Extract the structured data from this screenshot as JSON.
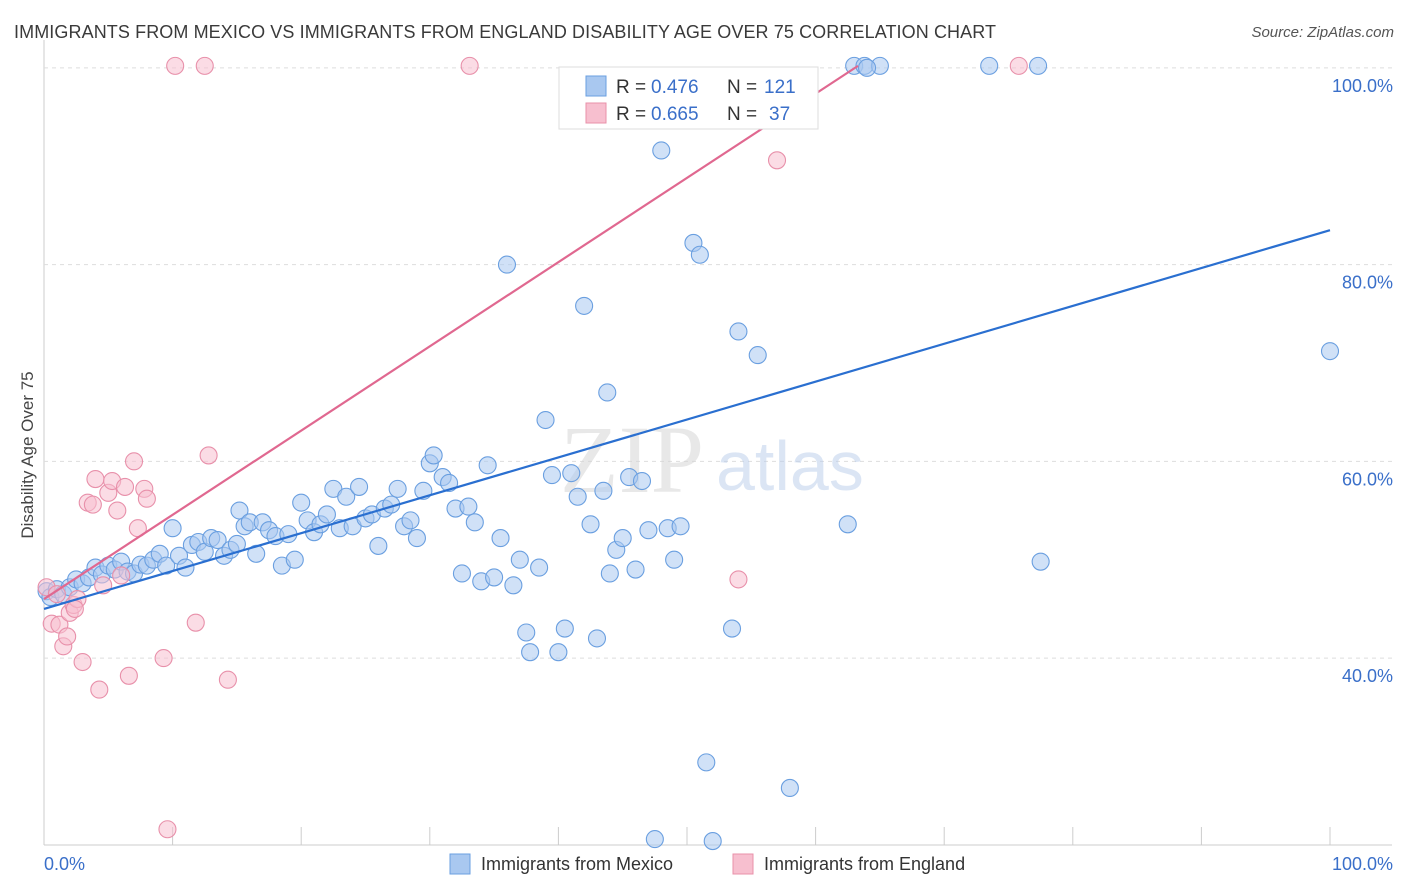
{
  "title": "IMMIGRANTS FROM MEXICO VS IMMIGRANTS FROM ENGLAND DISABILITY AGE OVER 75 CORRELATION CHART",
  "source": "Source: ZipAtlas.com",
  "watermark": "ZIPatlas",
  "colors": {
    "mexico_fill": "#a9c8f0",
    "mexico_stroke": "#6a9fe0",
    "mexico_line": "#2a6fd0",
    "england_fill": "#f7bfcf",
    "england_stroke": "#e890aa",
    "england_line": "#e06890",
    "axis_text": "#3a6fc9",
    "grid": "#dddddd"
  },
  "legend": {
    "rows": [
      {
        "r_label": "R =",
        "r_value": "0.476",
        "n_label": "N =",
        "n_value": "121"
      },
      {
        "r_label": "R =",
        "r_value": "0.665",
        "n_label": "N =",
        "n_value": "37"
      }
    ]
  },
  "chart_data": {
    "type": "scatter",
    "title": "IMMIGRANTS FROM MEXICO VS IMMIGRANTS FROM ENGLAND DISABILITY AGE OVER 75 CORRELATION CHART",
    "xlabel": "",
    "ylabel": "Disability Age Over 75",
    "xlim": [
      0,
      100
    ],
    "ylim": [
      21,
      101
    ],
    "x_tick_labels": [
      "0.0%",
      "100.0%"
    ],
    "y_ticks": [
      40,
      60,
      80,
      100
    ],
    "y_tick_labels": [
      "40.0%",
      "60.0%",
      "80.0%",
      "100.0%"
    ],
    "grid": true,
    "legend_position": "top-center",
    "series": [
      {
        "name": "Immigrants from Mexico",
        "r": 0.476,
        "n": 121,
        "trend": [
          [
            0,
            45.0
          ],
          [
            100,
            83.5
          ]
        ],
        "points": [
          [
            0.2,
            46.8
          ],
          [
            0.5,
            46.2
          ],
          [
            1.0,
            47.0
          ],
          [
            1.5,
            46.5
          ],
          [
            2.0,
            47.2
          ],
          [
            2.5,
            48.0
          ],
          [
            3.0,
            47.6
          ],
          [
            3.5,
            48.2
          ],
          [
            4.0,
            49.2
          ],
          [
            4.5,
            48.5
          ],
          [
            5.0,
            49.4
          ],
          [
            5.5,
            49.0
          ],
          [
            6.0,
            49.8
          ],
          [
            6.5,
            48.8
          ],
          [
            7.0,
            48.6
          ],
          [
            7.5,
            49.5
          ],
          [
            8.0,
            49.4
          ],
          [
            8.5,
            50.0
          ],
          [
            9.0,
            50.6
          ],
          [
            9.5,
            49.4
          ],
          [
            10.0,
            53.2
          ],
          [
            10.5,
            50.4
          ],
          [
            11.0,
            49.2
          ],
          [
            11.5,
            51.5
          ],
          [
            12.0,
            51.8
          ],
          [
            12.5,
            50.8
          ],
          [
            13.0,
            52.2
          ],
          [
            13.5,
            52.0
          ],
          [
            14.0,
            50.4
          ],
          [
            14.5,
            51.0
          ],
          [
            15.0,
            51.6
          ],
          [
            15.2,
            55.0
          ],
          [
            15.6,
            53.4
          ],
          [
            16.0,
            53.8
          ],
          [
            16.5,
            50.6
          ],
          [
            17.0,
            53.8
          ],
          [
            17.5,
            53.0
          ],
          [
            18.0,
            52.4
          ],
          [
            18.5,
            49.4
          ],
          [
            19.0,
            52.6
          ],
          [
            19.5,
            50.0
          ],
          [
            20.0,
            55.8
          ],
          [
            20.5,
            54.0
          ],
          [
            21.0,
            52.8
          ],
          [
            21.5,
            53.6
          ],
          [
            22.0,
            54.6
          ],
          [
            22.5,
            57.2
          ],
          [
            23.0,
            53.2
          ],
          [
            23.5,
            56.4
          ],
          [
            24.0,
            53.4
          ],
          [
            24.5,
            57.4
          ],
          [
            25.0,
            54.2
          ],
          [
            25.5,
            54.6
          ],
          [
            26.0,
            51.4
          ],
          [
            26.5,
            55.2
          ],
          [
            27.0,
            55.6
          ],
          [
            27.5,
            57.2
          ],
          [
            28.0,
            53.4
          ],
          [
            28.5,
            54.0
          ],
          [
            29.0,
            52.2
          ],
          [
            29.5,
            57.0
          ],
          [
            30.0,
            59.8
          ],
          [
            30.3,
            60.6
          ],
          [
            31.0,
            58.4
          ],
          [
            31.5,
            57.8
          ],
          [
            32.0,
            55.2
          ],
          [
            32.5,
            48.6
          ],
          [
            33.0,
            55.4
          ],
          [
            33.5,
            53.8
          ],
          [
            34.0,
            47.8
          ],
          [
            34.5,
            59.6
          ],
          [
            35.0,
            48.2
          ],
          [
            35.5,
            52.2
          ],
          [
            36.0,
            80.0
          ],
          [
            36.5,
            47.4
          ],
          [
            37.0,
            50.0
          ],
          [
            37.5,
            42.6
          ],
          [
            37.8,
            40.6
          ],
          [
            38.5,
            49.2
          ],
          [
            39.0,
            64.2
          ],
          [
            39.5,
            58.6
          ],
          [
            40.0,
            40.6
          ],
          [
            40.5,
            43.0
          ],
          [
            41.0,
            58.8
          ],
          [
            41.5,
            56.4
          ],
          [
            42.0,
            75.8
          ],
          [
            42.5,
            53.6
          ],
          [
            43.0,
            42.0
          ],
          [
            43.5,
            57.0
          ],
          [
            43.8,
            67.0
          ],
          [
            44.0,
            48.6
          ],
          [
            44.5,
            51.0
          ],
          [
            45.0,
            52.2
          ],
          [
            45.5,
            58.4
          ],
          [
            46.0,
            49.0
          ],
          [
            46.5,
            58.0
          ],
          [
            47.0,
            53.0
          ],
          [
            47.5,
            21.6
          ],
          [
            48.0,
            91.6
          ],
          [
            48.5,
            53.2
          ],
          [
            49.0,
            50.0
          ],
          [
            49.5,
            53.4
          ],
          [
            50.5,
            82.2
          ],
          [
            51.0,
            81.0
          ],
          [
            51.5,
            29.4
          ],
          [
            52.0,
            21.4
          ],
          [
            53.0,
            95.8
          ],
          [
            53.5,
            43.0
          ],
          [
            54.0,
            73.2
          ],
          [
            55.5,
            70.8
          ],
          [
            56.0,
            96.8
          ],
          [
            58.0,
            26.8
          ],
          [
            62.5,
            53.6
          ],
          [
            63.0,
            100.2
          ],
          [
            63.8,
            100.2
          ],
          [
            65.0,
            100.2
          ],
          [
            73.5,
            100.2
          ],
          [
            77.3,
            100.2
          ],
          [
            77.5,
            49.8
          ],
          [
            100.0,
            71.2
          ],
          [
            64.0,
            100.0
          ]
        ]
      },
      {
        "name": "Immigrants from England",
        "r": 0.665,
        "n": 37,
        "trend": [
          [
            0,
            46.0
          ],
          [
            63.3,
            100.2
          ]
        ],
        "points": [
          [
            0.2,
            47.2
          ],
          [
            0.6,
            43.5
          ],
          [
            1.0,
            46.5
          ],
          [
            1.2,
            43.4
          ],
          [
            1.5,
            41.2
          ],
          [
            1.8,
            42.2
          ],
          [
            2.0,
            44.6
          ],
          [
            2.3,
            45.4
          ],
          [
            2.6,
            46.0
          ],
          [
            3.0,
            39.6
          ],
          [
            3.4,
            55.8
          ],
          [
            3.8,
            55.6
          ],
          [
            4.0,
            58.2
          ],
          [
            4.3,
            36.8
          ],
          [
            4.6,
            47.4
          ],
          [
            5.0,
            56.8
          ],
          [
            5.3,
            58.0
          ],
          [
            5.7,
            55.0
          ],
          [
            6.0,
            48.4
          ],
          [
            6.3,
            57.4
          ],
          [
            6.6,
            38.2
          ],
          [
            7.0,
            60.0
          ],
          [
            7.3,
            53.2
          ],
          [
            7.8,
            57.2
          ],
          [
            8.0,
            56.2
          ],
          [
            9.3,
            40.0
          ],
          [
            9.6,
            22.6
          ],
          [
            10.2,
            100.2
          ],
          [
            11.8,
            43.6
          ],
          [
            12.8,
            60.6
          ],
          [
            12.5,
            100.2
          ],
          [
            14.3,
            37.8
          ],
          [
            33.1,
            100.2
          ],
          [
            57.0,
            90.6
          ],
          [
            75.8,
            100.2
          ],
          [
            54.0,
            48.0
          ],
          [
            2.4,
            45.0
          ]
        ]
      }
    ]
  },
  "bottom_legend": [
    {
      "label": "Immigrants from Mexico"
    },
    {
      "label": "Immigrants from England"
    }
  ]
}
